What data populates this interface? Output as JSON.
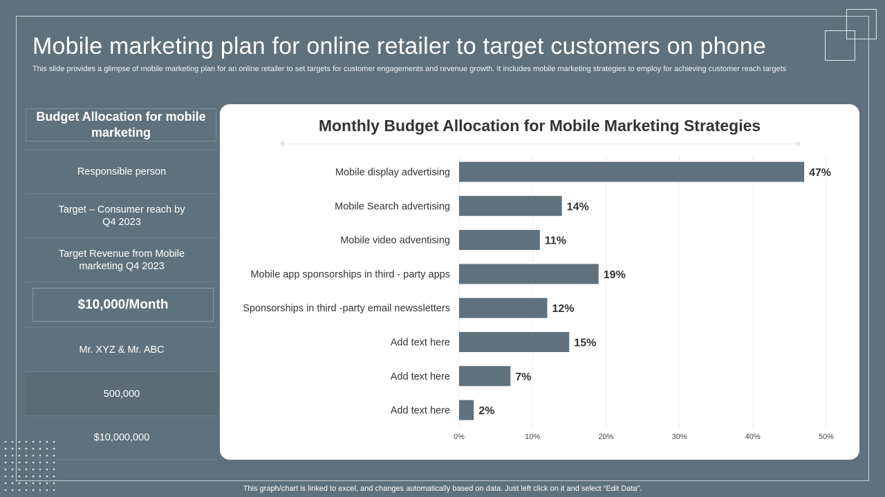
{
  "title": "Mobile marketing plan for online retailer to target customers on phone",
  "subtitle": "This slide provides a glimpse of mobile marketing plan for an online retailer to set targets for customer engagements and revenue growth. It includes mobile marketing strategies to employ for achieving customer reach targets",
  "left_panel": {
    "heading": "Budget Allocation for mobile marketing",
    "row_labels": [
      "Responsible person",
      "Target – Consumer reach by Q4 2023",
      "Target Revenue from Mobile marketing  Q4 2023"
    ],
    "budget_value": "$10,000/Month",
    "row_values": [
      "Mr. XYZ  & Mr. ABC",
      "500,000",
      "$10,000,000"
    ]
  },
  "footer": "This graph/chart is linked to excel,  and changes automatically based on data. Just left click on it and select “Edit Data”.",
  "colors": {
    "background": "#5f717c",
    "bar": "#5f717c",
    "card": "#ffffff"
  },
  "chart_data": {
    "type": "bar",
    "orientation": "horizontal",
    "title": "Monthly Budget Allocation for Mobile Marketing Strategies",
    "categories": [
      "Mobile display advertising",
      "Mobile Search advertising",
      "Mobile video adventising",
      "Mobile app sponsorships in third - party apps",
      "Sponsorships in third -party email newssletters",
      "Add text here",
      "Add text here",
      "Add text here"
    ],
    "values": [
      47,
      14,
      11,
      19,
      12,
      15,
      7,
      2
    ],
    "value_suffix": "%",
    "xlim": [
      0,
      50
    ],
    "xticks": [
      0,
      10,
      20,
      30,
      40,
      50
    ],
    "xtick_labels": [
      "0%",
      "10%",
      "20%",
      "30%",
      "40%",
      "50%"
    ],
    "grid": true,
    "xlabel": "",
    "ylabel": ""
  }
}
